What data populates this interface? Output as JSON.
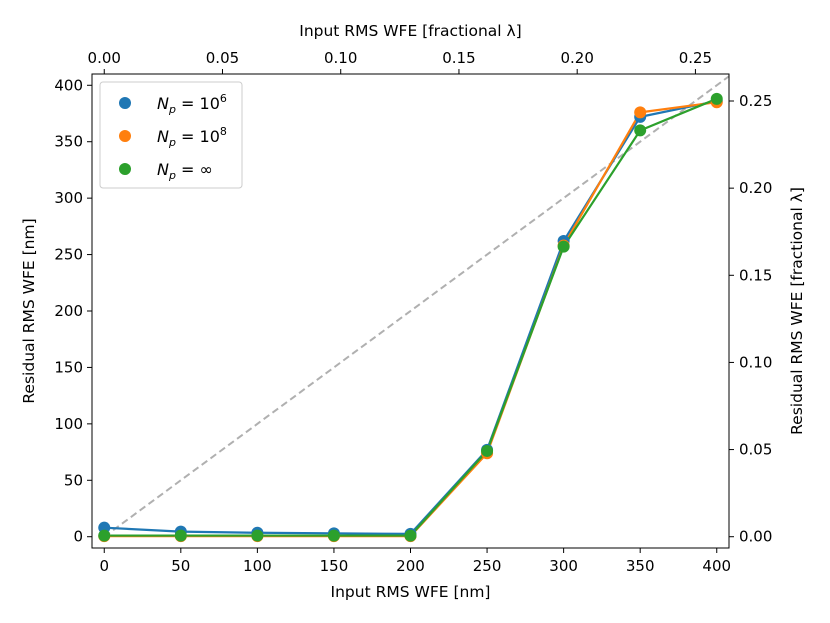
{
  "chart_data": {
    "type": "line",
    "title": "",
    "xlabel": "Input RMS WFE [nm]",
    "ylabel": "Residual RMS WFE [nm]",
    "x2label": "Input RMS WFE [fractional λ]",
    "y2label": "Residual RMS WFE [fractional λ]",
    "xlim": [
      -8,
      408
    ],
    "ylim": [
      -10,
      410
    ],
    "x2lim": [
      -0.00518,
      0.2642
    ],
    "y2lim": [
      -0.00648,
      0.2655
    ],
    "x_ticks": [
      "0",
      "50",
      "100",
      "150",
      "200",
      "250",
      "300",
      "350",
      "400"
    ],
    "y_ticks": [
      "0",
      "50",
      "100",
      "150",
      "200",
      "250",
      "300",
      "350",
      "400"
    ],
    "x2_ticks": [
      "0.00",
      "0.05",
      "0.10",
      "0.15",
      "0.20",
      "0.25"
    ],
    "y2_ticks": [
      "0.00",
      "0.05",
      "0.10",
      "0.15",
      "0.20",
      "0.25"
    ],
    "reference_line": {
      "style": "dashed",
      "color": "#b0b0b0",
      "x": [
        0,
        408
      ],
      "y": [
        0,
        408
      ]
    },
    "x": [
      0,
      50,
      100,
      150,
      200,
      250,
      300,
      350,
      400
    ],
    "series": [
      {
        "name": "N_p = 10^6",
        "legend": {
          "sym": "N",
          "sub": "p",
          "eq": " = 10",
          "sup": "6"
        },
        "color": "#1f77b4",
        "values": [
          8,
          4.5,
          3.5,
          3,
          2.5,
          77,
          262,
          372,
          386
        ]
      },
      {
        "name": "N_p = 10^8",
        "legend": {
          "sym": "N",
          "sub": "p",
          "eq": " = 10",
          "sup": "8"
        },
        "color": "#ff7f0e",
        "values": [
          0.5,
          0.5,
          0.5,
          0.5,
          0.5,
          74,
          258,
          376,
          385
        ]
      },
      {
        "name": "N_p = ∞",
        "legend": {
          "sym": "N",
          "sub": "p",
          "eq": " = ∞",
          "sup": ""
        },
        "color": "#2ca02c",
        "values": [
          1,
          1,
          1,
          1,
          1,
          76,
          257,
          360,
          388
        ]
      }
    ],
    "legend_position": "upper-left"
  }
}
